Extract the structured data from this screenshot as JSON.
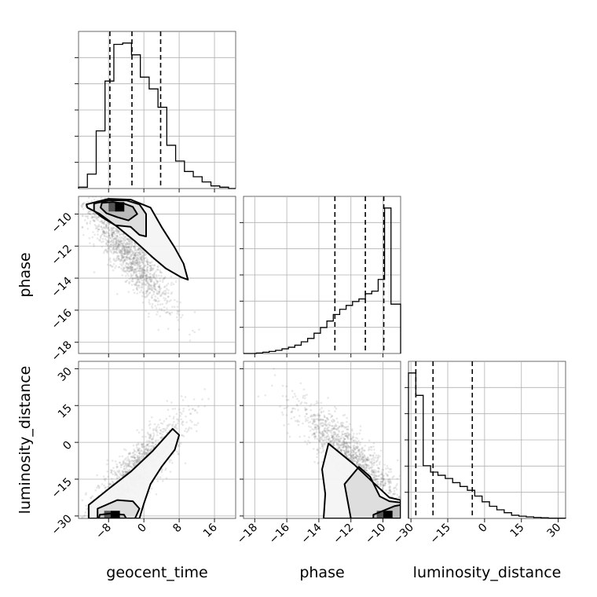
{
  "chart_data": {
    "type": "corner",
    "parameters": [
      {
        "name": "geocent_time",
        "range": [
          -14.8,
          20.8
        ],
        "ticks": [
          -8,
          0,
          8,
          16
        ]
      },
      {
        "name": "phase",
        "range": [
          -18.7,
          -8.9
        ],
        "ticks": [
          -18,
          -16,
          -14,
          -12,
          -10
        ]
      },
      {
        "name": "luminosity_distance",
        "range": [
          -31.0,
          33.0
        ],
        "ticks": [
          -30,
          -15,
          0,
          15,
          30
        ]
      }
    ],
    "histograms": [
      {
        "param": "geocent_time",
        "bin_edges": [
          -14.8,
          -12.8,
          -10.8,
          -8.8,
          -6.8,
          -4.8,
          -2.8,
          -0.8,
          1.2,
          3.2,
          5.2,
          7.2,
          9.2,
          11.2,
          13.2,
          15.2,
          17.2,
          19.2,
          20.8
        ],
        "counts": [
          0.05,
          0.55,
          2.2,
          4.1,
          5.5,
          5.55,
          5.1,
          4.25,
          3.8,
          3.1,
          1.65,
          1.05,
          0.65,
          0.45,
          0.25,
          0.1,
          0.05,
          0.0
        ],
        "quantiles": [
          -7.7,
          -2.7,
          3.8
        ]
      },
      {
        "param": "phase",
        "bin_edges": [
          -18.7,
          -18.3,
          -17.9,
          -17.5,
          -17.1,
          -16.7,
          -16.3,
          -15.9,
          -15.5,
          -15.1,
          -14.7,
          -14.3,
          -13.9,
          -13.5,
          -13.1,
          -12.7,
          -12.3,
          -11.9,
          -11.5,
          -11.1,
          -10.7,
          -10.3,
          -9.9,
          -9.5,
          -8.9
        ],
        "counts": [
          0.0,
          0.0,
          0.02,
          0.05,
          0.08,
          0.12,
          0.18,
          0.24,
          0.32,
          0.45,
          0.58,
          0.78,
          1.0,
          1.25,
          1.5,
          1.7,
          1.85,
          2.0,
          2.1,
          2.3,
          2.4,
          2.85,
          5.6,
          1.9
        ],
        "quantiles": [
          -13.0,
          -11.1,
          -9.95
        ]
      },
      {
        "param": "luminosity_distance",
        "bin_edges": [
          -31.0,
          -28.0,
          -25.0,
          -22.0,
          -19.0,
          -16.0,
          -13.0,
          -10.0,
          -7.0,
          -4.0,
          -1.0,
          2.0,
          5.0,
          8.0,
          11.0,
          14.0,
          17.0,
          20.0,
          23.0,
          26.0,
          29.0,
          33.0
        ],
        "counts": [
          4.55,
          3.85,
          1.65,
          1.45,
          1.35,
          1.25,
          1.12,
          1.0,
          0.88,
          0.7,
          0.52,
          0.38,
          0.27,
          0.18,
          0.1,
          0.07,
          0.05,
          0.03,
          0.02,
          0.01,
          0.01
        ],
        "quantiles": [
          -28.0,
          -21.0,
          -5.0
        ]
      }
    ],
    "pairs": [
      {
        "x": "geocent_time",
        "y": "phase",
        "scatter": {
          "center": [
            -3.5,
            -12.5
          ],
          "sd": [
            5.0,
            1.8
          ],
          "corr": -0.88,
          "n": 1400
        },
        "contour_levels": [
          [
            [
              -9.5,
              -9.3
            ],
            [
              -7.0,
              -9.25
            ],
            [
              -4.5,
              -9.35
            ],
            [
              -2.5,
              -9.55
            ],
            [
              -1.5,
              -10.0
            ],
            [
              -3.5,
              -10.4
            ],
            [
              -6.0,
              -10.2
            ],
            [
              -8.5,
              -9.95
            ],
            [
              -9.8,
              -9.6
            ]
          ],
          [
            [
              -11.3,
              -9.35
            ],
            [
              -8.0,
              -9.15
            ],
            [
              -4.0,
              -9.15
            ],
            [
              -1.0,
              -9.4
            ],
            [
              0.5,
              -10.0
            ],
            [
              0.5,
              -11.4
            ],
            [
              -1.0,
              -11.3
            ],
            [
              -3.0,
              -10.8
            ],
            [
              -6.5,
              -10.7
            ],
            [
              -9.5,
              -10.2
            ],
            [
              -11.3,
              -9.8
            ]
          ],
          [
            [
              -13.0,
              -9.4
            ],
            [
              -8.0,
              -9.05
            ],
            [
              -3.0,
              -9.1
            ],
            [
              1.5,
              -9.6
            ],
            [
              4.0,
              -10.8
            ],
            [
              7.0,
              -12.1
            ],
            [
              9.0,
              -13.1
            ],
            [
              10.0,
              -14.1
            ],
            [
              8.5,
              -13.95
            ],
            [
              5.0,
              -13.4
            ],
            [
              2.0,
              -12.7
            ],
            [
              -2.0,
              -11.7
            ],
            [
              -6.0,
              -10.8
            ],
            [
              -10.0,
              -10.0
            ],
            [
              -12.8,
              -9.6
            ]
          ]
        ],
        "density_peak": [
          -5.5,
          -9.55
        ]
      },
      {
        "x": "geocent_time",
        "y": "luminosity_distance",
        "scatter": {
          "center": [
            -2.0,
            -12.0
          ],
          "sd": [
            5.5,
            11.0
          ],
          "corr": 0.86,
          "n": 1400
        },
        "contour_levels": [
          [
            [
              -10.0,
              -29.5
            ],
            [
              -7.5,
              -29.0
            ],
            [
              -4.5,
              -29.5
            ],
            [
              -4.0,
              -31.0
            ],
            [
              -10.2,
              -31.0
            ]
          ],
          [
            [
              -10.5,
              -31.0
            ],
            [
              -10.5,
              -27.0
            ],
            [
              -6.0,
              -23.5
            ],
            [
              -2.5,
              -24.0
            ],
            [
              -1.0,
              -27.0
            ],
            [
              -2.0,
              -31.0
            ]
          ],
          [
            [
              -12.5,
              -31.0
            ],
            [
              -12.5,
              -25.5
            ],
            [
              -8.0,
              -19.0
            ],
            [
              -3.0,
              -12.0
            ],
            [
              2.0,
              -3.5
            ],
            [
              6.5,
              5.5
            ],
            [
              8.0,
              3.0
            ],
            [
              7.0,
              -3.0
            ],
            [
              4.0,
              -10.0
            ],
            [
              1.5,
              -17.0
            ],
            [
              0.0,
              -25.0
            ],
            [
              -1.0,
              -31.0
            ]
          ]
        ],
        "density_peak": [
          -6.5,
          -29.8
        ]
      },
      {
        "x": "phase",
        "y": "luminosity_distance",
        "scatter": {
          "center": [
            -12.0,
            -6.0
          ],
          "sd": [
            1.6,
            10.5
          ],
          "corr": -0.86,
          "n": 1400
        },
        "contour_levels": [
          [
            [
              -10.6,
              -29.5
            ],
            [
              -9.3,
              -26.0
            ],
            [
              -8.9,
              -25.5
            ],
            [
              -8.9,
              -31.0
            ],
            [
              -10.6,
              -31.0
            ]
          ],
          [
            [
              -12.0,
              -31.0
            ],
            [
              -12.4,
              -17.0
            ],
            [
              -11.5,
              -10.0
            ],
            [
              -10.8,
              -14.0
            ],
            [
              -10.2,
              -22.0
            ],
            [
              -9.6,
              -24.0
            ],
            [
              -8.9,
              -24.5
            ],
            [
              -8.9,
              -31.0
            ]
          ],
          [
            [
              -13.7,
              -31.0
            ],
            [
              -13.6,
              -21.0
            ],
            [
              -13.8,
              -11.0
            ],
            [
              -13.4,
              -0.5
            ],
            [
              -11.8,
              -9.0
            ],
            [
              -10.5,
              -17.0
            ],
            [
              -9.6,
              -22.5
            ],
            [
              -8.9,
              -23.5
            ],
            [
              -8.9,
              -31.0
            ]
          ]
        ],
        "density_peak": [
          -9.7,
          -29.8
        ]
      }
    ]
  }
}
